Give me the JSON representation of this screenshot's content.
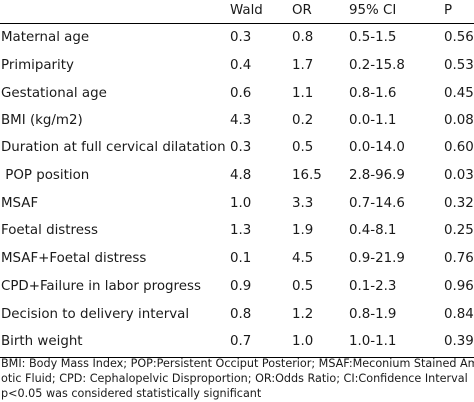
{
  "table": {
    "headers": [
      "",
      "Wald",
      "OR",
      "95% CI",
      "P"
    ],
    "rows": [
      [
        "Maternal age",
        "0.3",
        "0.8",
        "0.5-1.5",
        "0.56"
      ],
      [
        "Primiparity",
        "0.4",
        "1.7",
        "0.2-15.8",
        "0.53"
      ],
      [
        "Gestational age",
        "0.6",
        "1.1",
        "0.8-1.6",
        "0.45"
      ],
      [
        "BMI (kg/m2)",
        "4.3",
        "0.2",
        "0.0-1.1",
        "0.08"
      ],
      [
        "Duration at full cervical dilatation",
        "0.3",
        "0.5",
        "0.0-14.0",
        "0.60"
      ],
      [
        " POP position",
        "4.8",
        "16.5",
        "2.8-96.9",
        "0.03"
      ],
      [
        "MSAF",
        "1.0",
        "3.3",
        "0.7-14.6",
        "0.32"
      ],
      [
        "Foetal distress",
        "1.3",
        "1.9",
        "0.4-8.1",
        "0.25"
      ],
      [
        "MSAF+Foetal distress",
        "0.1",
        "4.5",
        "0.9-21.9",
        "0.76"
      ],
      [
        "CPD+Failure in labor progress",
        "0.9",
        "0.5",
        "0.1-2.3",
        "0.96"
      ],
      [
        "Decision to delivery interval",
        "0.8",
        "1.2",
        "0.8-1.9",
        "0.84"
      ],
      [
        "Birth weight",
        "0.7",
        "1.0",
        "1.0-1.1",
        "0.39"
      ]
    ]
  },
  "footnote": {
    "line1": "BMI: Body Mass Index; POP:Persistent Occiput Posterior; MSAF:Meconium Stained Amni-",
    "line2": "otic Fluid; CPD: Cephalopelvic Disproportion; OR:Odds Ratio; CI:Confidence Interval",
    "line3": "p<0.05 was considered statistically significant"
  }
}
